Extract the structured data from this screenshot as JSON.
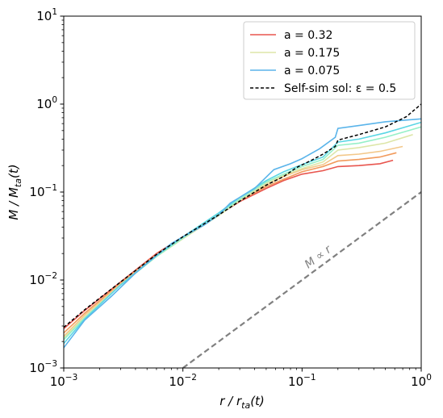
{
  "chart_data": {
    "type": "line",
    "x_scale": "log",
    "y_scale": "log",
    "xlim": [
      0.001,
      1
    ],
    "ylim": [
      0.001,
      10
    ],
    "xlabel_parts": {
      "main": "r / r",
      "sub": "ta",
      "tail": "(t)"
    },
    "ylabel_parts": {
      "main": "M / M",
      "sub": "ta",
      "tail": "(t)"
    },
    "x_ticks": [
      {
        "base": "10",
        "exp": "−3",
        "v": 0.001
      },
      {
        "base": "10",
        "exp": "−2",
        "v": 0.01
      },
      {
        "base": "10",
        "exp": "−1",
        "v": 0.1
      },
      {
        "base": "10",
        "exp": "0",
        "v": 1
      }
    ],
    "y_ticks": [
      {
        "base": "10",
        "exp": "−3",
        "v": 0.001
      },
      {
        "base": "10",
        "exp": "−2",
        "v": 0.01
      },
      {
        "base": "10",
        "exp": "−1",
        "v": 0.1
      },
      {
        "base": "10",
        "exp": "0",
        "v": 1
      },
      {
        "base": "10",
        "exp": "1",
        "v": 10
      }
    ],
    "legend": {
      "placement": "top-right",
      "entries": [
        {
          "label": "a = 0.32",
          "color": "#e8554e",
          "style": "solid"
        },
        {
          "label": "a = 0.175",
          "color": "#dde6a8",
          "style": "solid"
        },
        {
          "label": "a = 0.075",
          "color": "#5ab4ea",
          "style": "solid"
        },
        {
          "label": "Self-sim sol: ε = 0.5",
          "color": "#000000",
          "style": "dashed"
        }
      ]
    },
    "annotation": {
      "text": "M ∝ r",
      "color": "#808080"
    },
    "series": [
      {
        "color": "#e8554e",
        "x": [
          0.001,
          0.0015,
          0.003,
          0.006,
          0.01,
          0.02,
          0.03,
          0.05,
          0.07,
          0.1,
          0.15,
          0.2,
          0.3,
          0.45,
          0.58
        ],
        "y": [
          0.0028,
          0.0045,
          0.0095,
          0.02,
          0.031,
          0.055,
          0.078,
          0.11,
          0.135,
          0.16,
          0.175,
          0.195,
          0.2,
          0.21,
          0.23
        ]
      },
      {
        "color": "#f19a5b",
        "x": [
          0.001,
          0.0015,
          0.003,
          0.006,
          0.01,
          0.02,
          0.03,
          0.05,
          0.07,
          0.1,
          0.15,
          0.2,
          0.3,
          0.45,
          0.62
        ],
        "y": [
          0.0025,
          0.0042,
          0.0092,
          0.0195,
          0.031,
          0.056,
          0.08,
          0.115,
          0.14,
          0.17,
          0.195,
          0.225,
          0.235,
          0.25,
          0.28
        ]
      },
      {
        "color": "#f3c88a",
        "x": [
          0.001,
          0.0015,
          0.003,
          0.006,
          0.01,
          0.02,
          0.03,
          0.05,
          0.07,
          0.1,
          0.15,
          0.2,
          0.3,
          0.45,
          0.7
        ],
        "y": [
          0.0023,
          0.004,
          0.009,
          0.019,
          0.03,
          0.055,
          0.08,
          0.12,
          0.15,
          0.18,
          0.205,
          0.26,
          0.27,
          0.29,
          0.33
        ]
      },
      {
        "color": "#dde6a8",
        "x": [
          0.001,
          0.0015,
          0.003,
          0.006,
          0.01,
          0.02,
          0.03,
          0.05,
          0.07,
          0.1,
          0.15,
          0.2,
          0.3,
          0.5,
          0.85
        ],
        "y": [
          0.0022,
          0.0038,
          0.0088,
          0.0185,
          0.0295,
          0.054,
          0.08,
          0.125,
          0.155,
          0.185,
          0.22,
          0.3,
          0.32,
          0.36,
          0.45
        ]
      },
      {
        "color": "#96f0c8",
        "x": [
          0.001,
          0.0015,
          0.003,
          0.006,
          0.01,
          0.02,
          0.03,
          0.05,
          0.07,
          0.1,
          0.15,
          0.2,
          0.3,
          0.5,
          1.0
        ],
        "y": [
          0.0021,
          0.0037,
          0.0088,
          0.0185,
          0.03,
          0.056,
          0.083,
          0.13,
          0.16,
          0.195,
          0.235,
          0.34,
          0.36,
          0.42,
          0.55
        ]
      },
      {
        "color": "#5ad6e4",
        "x": [
          0.001,
          0.0015,
          0.003,
          0.006,
          0.01,
          0.02,
          0.03,
          0.05,
          0.07,
          0.1,
          0.15,
          0.2,
          0.3,
          0.5,
          1.0
        ],
        "y": [
          0.0019,
          0.0036,
          0.0088,
          0.019,
          0.031,
          0.058,
          0.087,
          0.135,
          0.17,
          0.205,
          0.25,
          0.37,
          0.4,
          0.47,
          0.62
        ]
      },
      {
        "color": "#5ab4ea",
        "x": [
          0.001,
          0.0015,
          0.0025,
          0.004,
          0.006,
          0.008,
          0.01,
          0.015,
          0.02,
          0.025,
          0.04,
          0.058,
          0.08,
          0.1,
          0.14,
          0.19,
          0.2,
          0.3,
          0.5,
          1.0
        ],
        "y": [
          0.0017,
          0.0035,
          0.0065,
          0.012,
          0.019,
          0.026,
          0.031,
          0.042,
          0.055,
          0.075,
          0.11,
          0.18,
          0.21,
          0.24,
          0.31,
          0.42,
          0.53,
          0.57,
          0.63,
          0.68
        ]
      },
      {
        "color": "#000000",
        "dashed": true,
        "x": [
          0.001,
          0.0015,
          0.003,
          0.006,
          0.01,
          0.02,
          0.03,
          0.05,
          0.07,
          0.09,
          0.12,
          0.15,
          0.19,
          0.2,
          0.3,
          0.5,
          0.75,
          1.0
        ],
        "y": [
          0.0029,
          0.0046,
          0.0095,
          0.0195,
          0.031,
          0.055,
          0.079,
          0.12,
          0.15,
          0.19,
          0.23,
          0.27,
          0.33,
          0.39,
          0.45,
          0.55,
          0.72,
          1.0
        ]
      },
      {
        "color": "#808080",
        "dashed": true,
        "reference": true,
        "x": [
          0.01,
          1.0
        ],
        "y": [
          0.001,
          0.1
        ]
      }
    ]
  }
}
